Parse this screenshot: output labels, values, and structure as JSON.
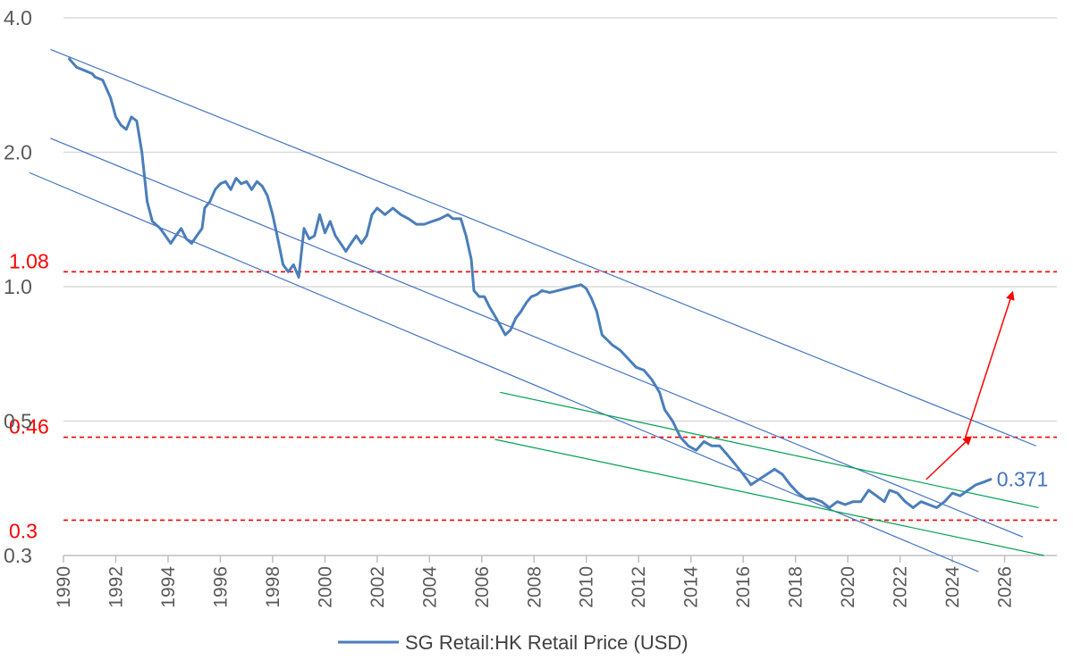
{
  "chart_data": {
    "type": "line",
    "title": "",
    "xlabel": "",
    "ylabel": "",
    "y_scale": "log",
    "xlim": [
      1990,
      2028
    ],
    "ylim": [
      0.25,
      4.0
    ],
    "x_ticks": [
      "1990",
      "1992",
      "1994",
      "1996",
      "1998",
      "2000",
      "2002",
      "2004",
      "2006",
      "2008",
      "2010",
      "2012",
      "2014",
      "2016",
      "2018",
      "2020",
      "2022",
      "2024",
      "2026"
    ],
    "y_ticks": [
      {
        "value": 4.0,
        "label": "4.0"
      },
      {
        "value": 2.0,
        "label": "2.0"
      },
      {
        "value": 1.0,
        "label": "1.0"
      },
      {
        "value": 0.5,
        "label": "0.5"
      },
      {
        "value": 0.25,
        "label": "0.3"
      }
    ],
    "grid": "horizontal",
    "legend_position": "bottom",
    "series": [
      {
        "name": "SG Retail:HK Retail Price (USD)",
        "color": "#4a7ebb",
        "points": [
          [
            1990.2,
            3.25
          ],
          [
            1990.5,
            3.1
          ],
          [
            1990.8,
            3.05
          ],
          [
            1991.1,
            3.0
          ],
          [
            1991.2,
            2.95
          ],
          [
            1991.5,
            2.9
          ],
          [
            1991.8,
            2.65
          ],
          [
            1992.0,
            2.4
          ],
          [
            1992.2,
            2.3
          ],
          [
            1992.4,
            2.25
          ],
          [
            1992.6,
            2.4
          ],
          [
            1992.8,
            2.35
          ],
          [
            1993.0,
            2.0
          ],
          [
            1993.2,
            1.55
          ],
          [
            1993.4,
            1.4
          ],
          [
            1993.7,
            1.35
          ],
          [
            1993.9,
            1.3
          ],
          [
            1994.1,
            1.25
          ],
          [
            1994.3,
            1.3
          ],
          [
            1994.5,
            1.35
          ],
          [
            1994.7,
            1.28
          ],
          [
            1994.9,
            1.25
          ],
          [
            1995.1,
            1.3
          ],
          [
            1995.3,
            1.35
          ],
          [
            1995.4,
            1.5
          ],
          [
            1995.6,
            1.55
          ],
          [
            1995.8,
            1.65
          ],
          [
            1996.0,
            1.7
          ],
          [
            1996.2,
            1.72
          ],
          [
            1996.4,
            1.65
          ],
          [
            1996.6,
            1.75
          ],
          [
            1996.8,
            1.7
          ],
          [
            1997.0,
            1.72
          ],
          [
            1997.2,
            1.65
          ],
          [
            1997.4,
            1.72
          ],
          [
            1997.6,
            1.68
          ],
          [
            1997.8,
            1.6
          ],
          [
            1998.0,
            1.45
          ],
          [
            1998.2,
            1.28
          ],
          [
            1998.4,
            1.12
          ],
          [
            1998.6,
            1.08
          ],
          [
            1998.8,
            1.12
          ],
          [
            1999.0,
            1.05
          ],
          [
            1999.2,
            1.35
          ],
          [
            1999.4,
            1.28
          ],
          [
            1999.6,
            1.3
          ],
          [
            1999.8,
            1.45
          ],
          [
            2000.0,
            1.32
          ],
          [
            2000.2,
            1.4
          ],
          [
            2000.4,
            1.3
          ],
          [
            2000.6,
            1.25
          ],
          [
            2000.8,
            1.2
          ],
          [
            2001.0,
            1.25
          ],
          [
            2001.2,
            1.3
          ],
          [
            2001.4,
            1.25
          ],
          [
            2001.6,
            1.3
          ],
          [
            2001.8,
            1.45
          ],
          [
            2002.0,
            1.5
          ],
          [
            2002.3,
            1.45
          ],
          [
            2002.6,
            1.5
          ],
          [
            2002.9,
            1.45
          ],
          [
            2003.2,
            1.42
          ],
          [
            2003.5,
            1.38
          ],
          [
            2003.8,
            1.38
          ],
          [
            2004.1,
            1.4
          ],
          [
            2004.4,
            1.42
          ],
          [
            2004.7,
            1.45
          ],
          [
            2004.9,
            1.42
          ],
          [
            2005.2,
            1.42
          ],
          [
            2005.4,
            1.3
          ],
          [
            2005.6,
            1.15
          ],
          [
            2005.7,
            0.98
          ],
          [
            2005.9,
            0.95
          ],
          [
            2006.1,
            0.95
          ],
          [
            2006.3,
            0.9
          ],
          [
            2006.5,
            0.86
          ],
          [
            2006.7,
            0.82
          ],
          [
            2006.9,
            0.78
          ],
          [
            2007.1,
            0.8
          ],
          [
            2007.3,
            0.85
          ],
          [
            2007.5,
            0.88
          ],
          [
            2007.7,
            0.92
          ],
          [
            2007.9,
            0.95
          ],
          [
            2008.1,
            0.96
          ],
          [
            2008.3,
            0.98
          ],
          [
            2008.6,
            0.97
          ],
          [
            2008.9,
            0.98
          ],
          [
            2009.2,
            0.99
          ],
          [
            2009.5,
            1.0
          ],
          [
            2009.8,
            1.01
          ],
          [
            2010.0,
            0.99
          ],
          [
            2010.2,
            0.94
          ],
          [
            2010.4,
            0.88
          ],
          [
            2010.6,
            0.78
          ],
          [
            2010.8,
            0.76
          ],
          [
            2011.0,
            0.74
          ],
          [
            2011.3,
            0.72
          ],
          [
            2011.6,
            0.69
          ],
          [
            2011.9,
            0.66
          ],
          [
            2012.2,
            0.65
          ],
          [
            2012.5,
            0.62
          ],
          [
            2012.8,
            0.58
          ],
          [
            2013.0,
            0.53
          ],
          [
            2013.3,
            0.5
          ],
          [
            2013.6,
            0.46
          ],
          [
            2013.9,
            0.44
          ],
          [
            2014.2,
            0.43
          ],
          [
            2014.5,
            0.45
          ],
          [
            2014.8,
            0.44
          ],
          [
            2015.1,
            0.44
          ],
          [
            2015.4,
            0.42
          ],
          [
            2015.7,
            0.4
          ],
          [
            2016.0,
            0.38
          ],
          [
            2016.3,
            0.36
          ],
          [
            2016.6,
            0.37
          ],
          [
            2016.9,
            0.38
          ],
          [
            2017.2,
            0.39
          ],
          [
            2017.5,
            0.38
          ],
          [
            2017.8,
            0.36
          ],
          [
            2018.1,
            0.345
          ],
          [
            2018.4,
            0.335
          ],
          [
            2018.7,
            0.335
          ],
          [
            2019.0,
            0.33
          ],
          [
            2019.3,
            0.32
          ],
          [
            2019.6,
            0.33
          ],
          [
            2019.9,
            0.325
          ],
          [
            2020.2,
            0.33
          ],
          [
            2020.5,
            0.33
          ],
          [
            2020.8,
            0.35
          ],
          [
            2021.1,
            0.34
          ],
          [
            2021.4,
            0.33
          ],
          [
            2021.6,
            0.35
          ],
          [
            2021.9,
            0.345
          ],
          [
            2022.2,
            0.33
          ],
          [
            2022.5,
            0.32
          ],
          [
            2022.8,
            0.33
          ],
          [
            2023.1,
            0.325
          ],
          [
            2023.4,
            0.32
          ],
          [
            2023.7,
            0.33
          ],
          [
            2024.0,
            0.345
          ],
          [
            2024.3,
            0.34
          ],
          [
            2024.6,
            0.35
          ],
          [
            2024.9,
            0.36
          ],
          [
            2025.2,
            0.365
          ],
          [
            2025.5,
            0.371
          ]
        ]
      }
    ],
    "reference_lines": [
      {
        "value": 1.08,
        "label": "1.08",
        "color": "#ff0000",
        "style": "dashed"
      },
      {
        "value": 0.46,
        "label": "0.46",
        "color": "#ff0000",
        "style": "dashed"
      },
      {
        "value": 0.3,
        "label": "0.3",
        "color": "#ff0000",
        "style": "dashed"
      }
    ],
    "trend_channels": [
      {
        "color": "#4472c4",
        "points": [
          [
            1989.5,
            3.4
          ],
          [
            2027.2,
            0.44
          ]
        ]
      },
      {
        "color": "#4472c4",
        "points": [
          [
            1989.5,
            2.15
          ],
          [
            2026.7,
            0.275
          ]
        ]
      },
      {
        "color": "#4472c4",
        "points": [
          [
            1988.7,
            1.8
          ],
          [
            2025.0,
            0.23
          ]
        ]
      },
      {
        "color": "#00a050",
        "points": [
          [
            2006.7,
            0.58
          ],
          [
            2027.3,
            0.32
          ]
        ]
      },
      {
        "color": "#00a050",
        "points": [
          [
            2006.5,
            0.455
          ],
          [
            2027.5,
            0.25
          ]
        ]
      }
    ],
    "annotations": [
      {
        "text": "0.371",
        "x": 2025.7,
        "y": 0.371,
        "color": "#4472c4"
      },
      {
        "type": "arrow",
        "color": "#ff0000",
        "from": [
          2023.0,
          0.37
        ],
        "to": [
          2024.7,
          0.46
        ]
      },
      {
        "type": "arrow",
        "color": "#ff0000",
        "from": [
          2024.5,
          0.46
        ],
        "to": [
          2026.3,
          0.97
        ]
      }
    ],
    "legend": [
      {
        "label": "SG Retail:HK Retail Price (USD)",
        "color": "#4a7ebb"
      }
    ]
  }
}
